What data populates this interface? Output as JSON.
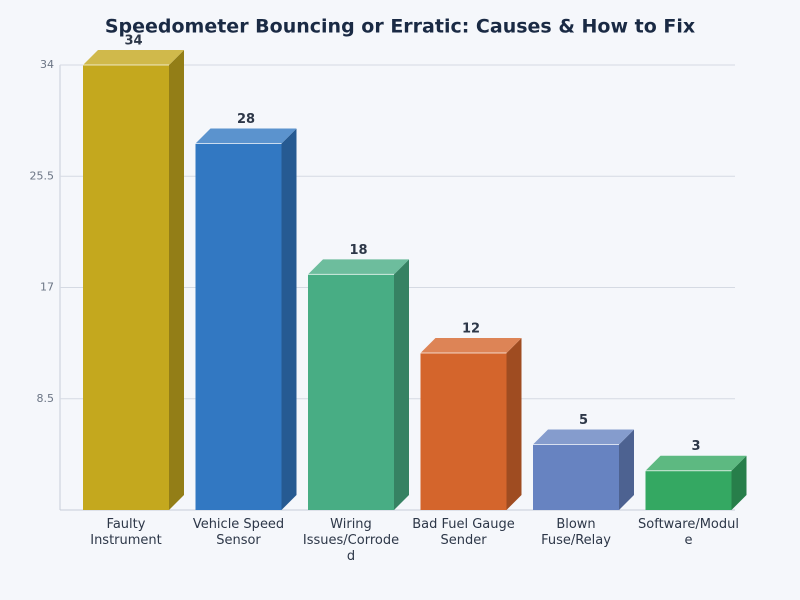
{
  "chart_data": {
    "type": "bar3d",
    "title": "Speedometer Bouncing or Erratic: Causes & How to Fix",
    "categories": [
      "Faulty Instrument",
      "Vehicle Speed Sensor",
      "Wiring Issues/Corroded",
      "Bad Fuel Gauge Sender",
      "Blown Fuse/Relay",
      "Software/Module"
    ],
    "values": [
      34,
      28,
      18,
      12,
      5,
      3
    ],
    "colors": [
      "#c4a81e",
      "#3278c2",
      "#48ad84",
      "#d4652c",
      "#6783c1",
      "#34a862"
    ],
    "ylim": [
      0,
      34
    ],
    "yticks": [
      8.5,
      17,
      25.5,
      34
    ],
    "grid": true
  }
}
